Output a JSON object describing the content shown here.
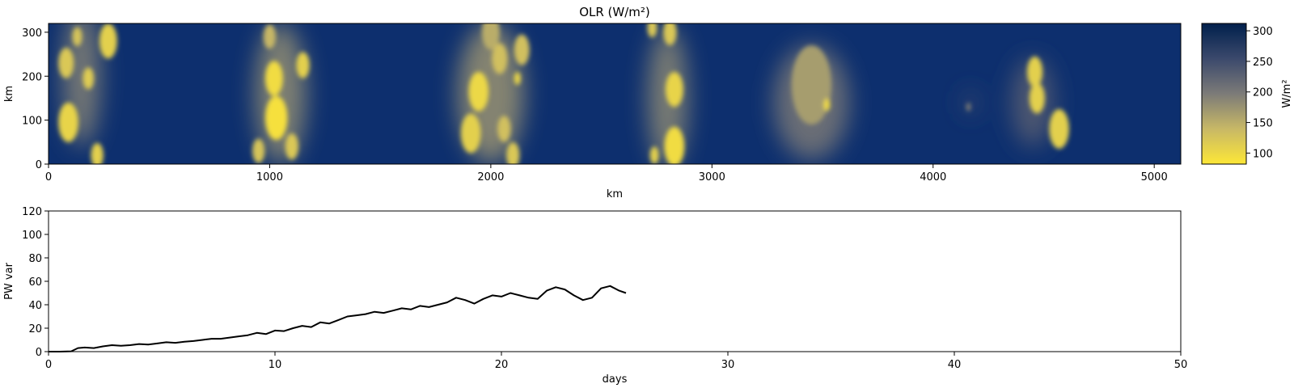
{
  "chart_data": [
    {
      "type": "heatmap",
      "title": "OLR (W/m²)",
      "xlabel": "km",
      "ylabel": "km",
      "xlim": [
        0,
        5120
      ],
      "ylim": [
        0,
        320
      ],
      "x_ticks": [
        0,
        1000,
        2000,
        3000,
        4000,
        5000
      ],
      "y_ticks": [
        0,
        100,
        200,
        300
      ],
      "colormap": "cividis_r",
      "colorbar": {
        "label": "W/m²",
        "range": [
          82,
          312
        ],
        "ticks": [
          100,
          150,
          200,
          250,
          300
        ]
      },
      "clusters": [
        {
          "x": 150,
          "y": 200,
          "w": 170,
          "h": 320,
          "v": 190
        },
        {
          "x": 1050,
          "y": 160,
          "w": 230,
          "h": 320,
          "v": 180
        },
        {
          "x": 2000,
          "y": 160,
          "w": 300,
          "h": 320,
          "v": 175
        },
        {
          "x": 2800,
          "y": 150,
          "w": 180,
          "h": 320,
          "v": 185
        },
        {
          "x": 3450,
          "y": 140,
          "w": 340,
          "h": 260,
          "v": 200
        },
        {
          "x": 4450,
          "y": 140,
          "w": 190,
          "h": 200,
          "v": 230
        },
        {
          "x": 4170,
          "y": 140,
          "w": 60,
          "h": 60,
          "v": 250
        }
      ],
      "cells": [
        {
          "x": 270,
          "y": 280,
          "r": 40,
          "v": 110
        },
        {
          "x": 80,
          "y": 230,
          "r": 35,
          "v": 120
        },
        {
          "x": 90,
          "y": 95,
          "r": 45,
          "v": 105
        },
        {
          "x": 180,
          "y": 195,
          "r": 25,
          "v": 115
        },
        {
          "x": 220,
          "y": 20,
          "r": 28,
          "v": 110
        },
        {
          "x": 130,
          "y": 290,
          "r": 22,
          "v": 125
        },
        {
          "x": 1020,
          "y": 195,
          "r": 40,
          "v": 95
        },
        {
          "x": 1030,
          "y": 105,
          "r": 50,
          "v": 90
        },
        {
          "x": 1150,
          "y": 225,
          "r": 30,
          "v": 110
        },
        {
          "x": 1100,
          "y": 40,
          "r": 30,
          "v": 120
        },
        {
          "x": 950,
          "y": 30,
          "r": 28,
          "v": 125
        },
        {
          "x": 1000,
          "y": 290,
          "r": 28,
          "v": 140
        },
        {
          "x": 1945,
          "y": 165,
          "r": 45,
          "v": 100
        },
        {
          "x": 2040,
          "y": 240,
          "r": 35,
          "v": 130
        },
        {
          "x": 1910,
          "y": 70,
          "r": 45,
          "v": 110
        },
        {
          "x": 2060,
          "y": 80,
          "r": 30,
          "v": 130
        },
        {
          "x": 2140,
          "y": 260,
          "r": 35,
          "v": 130
        },
        {
          "x": 2100,
          "y": 20,
          "r": 30,
          "v": 120
        },
        {
          "x": 2120,
          "y": 195,
          "r": 15,
          "v": 100
        },
        {
          "x": 2000,
          "y": 300,
          "r": 40,
          "v": 150
        },
        {
          "x": 2830,
          "y": 170,
          "r": 40,
          "v": 105
        },
        {
          "x": 2830,
          "y": 40,
          "r": 45,
          "v": 95
        },
        {
          "x": 2740,
          "y": 20,
          "r": 20,
          "v": 110
        },
        {
          "x": 2810,
          "y": 300,
          "r": 30,
          "v": 120
        },
        {
          "x": 2730,
          "y": 310,
          "r": 22,
          "v": 120
        },
        {
          "x": 3450,
          "y": 180,
          "r": 90,
          "v": 165
        },
        {
          "x": 3520,
          "y": 135,
          "r": 14,
          "v": 95
        },
        {
          "x": 4460,
          "y": 210,
          "r": 35,
          "v": 110
        },
        {
          "x": 4470,
          "y": 150,
          "r": 35,
          "v": 110
        },
        {
          "x": 4570,
          "y": 80,
          "r": 45,
          "v": 110
        },
        {
          "x": 4160,
          "y": 130,
          "r": 10,
          "v": 190
        }
      ]
    },
    {
      "type": "line",
      "title": "",
      "xlabel": "days",
      "ylabel": "PW var",
      "xlim": [
        0,
        50
      ],
      "ylim": [
        0,
        120
      ],
      "x_ticks": [
        0,
        10,
        20,
        30,
        40,
        50
      ],
      "y_ticks": [
        0,
        20,
        40,
        60,
        80,
        100,
        120
      ],
      "grid": false,
      "series": [
        {
          "color": "#000000",
          "x": [
            0,
            0.5,
            1.0,
            1.3,
            1.6,
            2.0,
            2.4,
            2.8,
            3.2,
            3.6,
            4.0,
            4.4,
            4.8,
            5.2,
            5.6,
            6.0,
            6.4,
            6.8,
            7.2,
            7.6,
            8.0,
            8.4,
            8.8,
            9.2,
            9.6,
            10.0,
            10.4,
            10.8,
            11.2,
            11.6,
            12.0,
            12.4,
            12.8,
            13.2,
            13.6,
            14.0,
            14.4,
            14.8,
            15.2,
            15.6,
            16.0,
            16.4,
            16.8,
            17.2,
            17.6,
            18.0,
            18.4,
            18.8,
            19.2,
            19.6,
            20.0,
            20.4,
            20.8,
            21.2,
            21.6,
            22.0,
            22.4,
            22.8,
            23.2,
            23.6,
            24.0,
            24.4,
            24.8,
            25.2,
            25.5
          ],
          "values": [
            0,
            0,
            0.3,
            3,
            3.5,
            3,
            4.5,
            5.5,
            5,
            5.5,
            6.5,
            6,
            7,
            8,
            7.5,
            8.5,
            9,
            10,
            11,
            11,
            12,
            13,
            14,
            16,
            15,
            18,
            17.5,
            20,
            22,
            21,
            25,
            24,
            27,
            30,
            31,
            32,
            34,
            33,
            35,
            37,
            36,
            39,
            38,
            40,
            42,
            46,
            44,
            41,
            45,
            48,
            47,
            50,
            48,
            46,
            45,
            52,
            55,
            53,
            48,
            44,
            46,
            54,
            56,
            52,
            50
          ]
        }
      ]
    }
  ]
}
